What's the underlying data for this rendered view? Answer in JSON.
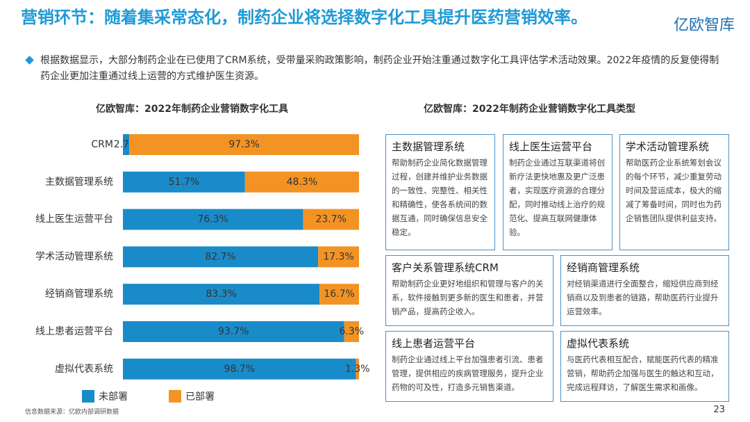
{
  "header": {
    "title": "营销环节：随着集采常态化，制药企业将选择数字化工具提升医药营销效率。",
    "logo": "亿欧智库",
    "bullet": "根据数据显示，大部分制药企业在已使用了CRM系统，受带量采购政策影响，制药企业开始注重通过数字化工具评估学术活动效果。2022年疫情的反复使得制药企业更加注重通过线上运营的方式维护医生资源。"
  },
  "chart_data": {
    "type": "bar",
    "orientation": "horizontal",
    "stacked": true,
    "title": "亿欧智库：2022年制药企业营销数字化工具",
    "categories": [
      "CRM",
      "主数据管理系统",
      "线上医生运营平台",
      "学术活动管理系统",
      "经销商管理系统",
      "线上患者运营平台",
      "虚拟代表系统"
    ],
    "xlim": [
      0,
      100
    ],
    "series": [
      {
        "name": "未部署",
        "color": "#1a8bc9",
        "values": [
          2.7,
          51.7,
          76.3,
          82.7,
          83.3,
          93.7,
          98.7
        ],
        "value_labels": [
          "2.7%",
          "51.7%",
          "76.3%",
          "82.7%",
          "83.3%",
          "93.7%",
          "98.7%"
        ]
      },
      {
        "name": "已部署",
        "color": "#f39324",
        "values": [
          97.3,
          48.3,
          23.7,
          17.3,
          16.7,
          6.3,
          1.3
        ],
        "value_labels": [
          "97.3%",
          "48.3%",
          "23.7%",
          "17.3%",
          "16.7%",
          "6.3%",
          "1.3%"
        ]
      }
    ]
  },
  "panel": {
    "title": "亿欧智库：2022年制药企业营销数字化工具类型",
    "boxes": [
      {
        "title": "主数据管理系统",
        "text": "帮助制药企业简化数据管理过程，创建并维护业务数据的一致性、完整性、相关性和精确性，使各系统间的数据互通，同时确保信息安全稳定。"
      },
      {
        "title": "线上医生运营平台",
        "text": "制药企业通过互联渠道将创新疗法更快地惠及更广泛患者，实现医疗资源的合理分配，同时推动线上治疗的规范化、提高互联网健康体验。"
      },
      {
        "title": "学术活动管理系统",
        "text": "帮助医药企业系统筹划会议的每个环节，减少重复劳动时间及营运成本，极大的缩减了筹备时间，同时也为药企销售团队提供利益支持。"
      },
      {
        "title": "客户关系管理系统CRM",
        "text": "帮助制药企业更好地组织和管理与客户的关系，软件接触到更多新的医生和患者，并营销产品，提高药企收入。"
      },
      {
        "title": "经销商管理系统",
        "text": "对经销渠道进行全面整合，缩短供应商到经销商以及到患者的链路，帮助医药行业提升运营效率。"
      },
      {
        "title": "线上患者运营平台",
        "text": "制药企业通过线上平台加强患者引流、患者管理，提供相应的疾病管理服务，提升企业药物的可及性，打造多元销售渠道。"
      },
      {
        "title": "虚拟代表系统",
        "text": "与医药代表相互配合，赋能医药代表的精准营销，帮助药企加强与医生的触达和互动，完成远程拜访，了解医生需求和画像。"
      }
    ]
  },
  "footer": {
    "source": "信息数据来源：亿欧内部调研数据",
    "page": "23"
  }
}
